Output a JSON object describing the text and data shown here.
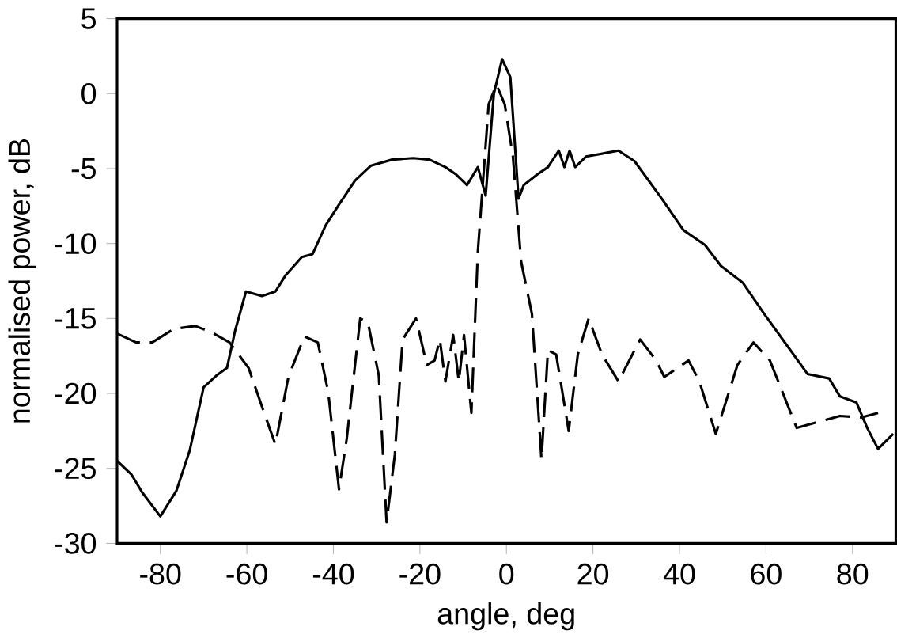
{
  "chart_data": {
    "type": "line",
    "xlabel": "angle, deg",
    "ylabel": "normalised power, dB",
    "xlim": [
      -90,
      90
    ],
    "ylim": [
      -30,
      5
    ],
    "xticks": [
      -80,
      -60,
      -40,
      -20,
      0,
      20,
      40,
      60,
      80
    ],
    "yticks": [
      -30,
      -25,
      -20,
      -15,
      -10,
      -5,
      0,
      5
    ],
    "grid": false,
    "marker": "none",
    "series": [
      {
        "color": "#000000",
        "line_style": "solid",
        "x": [
          -90,
          -86.7,
          -84.2,
          -80,
          -76.3,
          -73.2,
          -70,
          -67,
          -64.6,
          -62.7,
          -60.2,
          -56.5,
          -53.4,
          -51,
          -47.3,
          -44.8,
          -41.8,
          -38.7,
          -35,
          -31.3,
          -26.4,
          -21.5,
          -17.8,
          -14.1,
          -11.6,
          -9.1,
          -6.6,
          -4.8,
          -2.9,
          -1,
          0.9,
          2.8,
          4,
          7.1,
          9.6,
          12.1,
          13.4,
          14.6,
          15.9,
          18.4,
          25.9,
          29.6,
          35.9,
          40.9,
          45.9,
          49.6,
          54.6,
          59.6,
          64.6,
          69.6,
          74.6,
          77.1,
          80.9,
          83.4,
          85.9,
          89.4
        ],
        "values": [
          -24.5,
          -25.4,
          -26.6,
          -28.2,
          -26.5,
          -23.8,
          -19.6,
          -18.8,
          -18.3,
          -15.8,
          -13.2,
          -13.5,
          -13.2,
          -12.1,
          -10.9,
          -10.7,
          -8.8,
          -7.4,
          -5.8,
          -4.8,
          -4.4,
          -4.3,
          -4.4,
          -4.9,
          -5.4,
          -6.1,
          -4.9,
          -6.8,
          0,
          2.3,
          1.1,
          -7,
          -6.1,
          -5.4,
          -4.9,
          -3.8,
          -4.9,
          -3.8,
          -4.9,
          -4.2,
          -3.8,
          -4.5,
          -7,
          -9.1,
          -10.1,
          -11.5,
          -12.6,
          -14.7,
          -16.7,
          -18.7,
          -19,
          -20.2,
          -20.6,
          -22.3,
          -23.7,
          -22.7
        ]
      },
      {
        "color": "#000000",
        "line_style": "dashed",
        "x": [
          -90,
          -85.6,
          -81.9,
          -76.9,
          -72,
          -68.3,
          -64,
          -59.6,
          -56,
          -53.4,
          -50.4,
          -46.7,
          -43.6,
          -41.2,
          -38.7,
          -36.9,
          -33.8,
          -32,
          -29.5,
          -27.7,
          -25.8,
          -24,
          -20.9,
          -18.4,
          -16.6,
          -15.4,
          -14.1,
          -12.3,
          -11,
          -9.8,
          -8.1,
          -6.6,
          -4.1,
          -2.3,
          -0.4,
          1.5,
          3.4,
          5.9,
          8.1,
          9.6,
          11.5,
          14.4,
          16.5,
          19,
          22.1,
          25.9,
          30.9,
          34.6,
          36.5,
          42.1,
          44.6,
          48.4,
          53.4,
          57.1,
          60.9,
          67.1,
          72.1,
          77.1,
          82.1,
          85.9
        ],
        "values": [
          -16,
          -16.6,
          -16.6,
          -15.7,
          -15.5,
          -15.9,
          -16.6,
          -18.3,
          -21.3,
          -23.4,
          -18.9,
          -16.2,
          -16.6,
          -19.9,
          -26.4,
          -23,
          -15,
          -15.3,
          -18.8,
          -28.6,
          -24.1,
          -16.4,
          -15,
          -18.1,
          -17.8,
          -16.4,
          -19.2,
          -16.1,
          -19.2,
          -16.1,
          -21.3,
          -10.5,
          -0.7,
          0.6,
          -0.7,
          -4.2,
          -11.2,
          -14.7,
          -24.4,
          -17.1,
          -17.4,
          -22.5,
          -17.4,
          -15,
          -17.4,
          -19.2,
          -16.4,
          -17.8,
          -18.9,
          -17.8,
          -19.2,
          -22.7,
          -18.1,
          -16.6,
          -17.8,
          -22.3,
          -21.9,
          -21.5,
          -21.6,
          -21.3
        ]
      }
    ]
  }
}
